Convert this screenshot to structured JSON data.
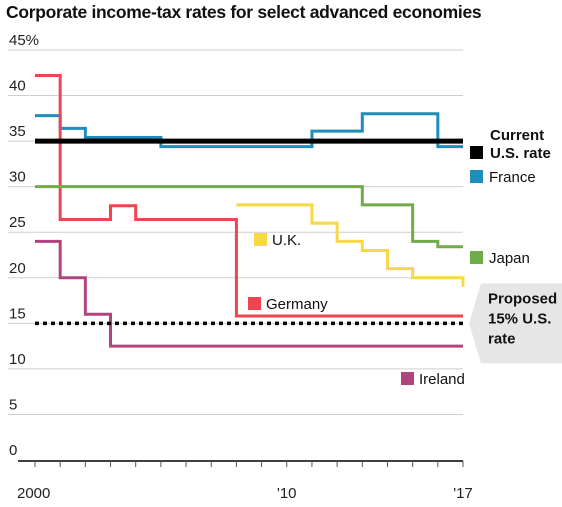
{
  "chart_data": {
    "type": "line",
    "title": "Corporate income-tax rates for select advanced economies",
    "y_ticks": [
      0,
      5,
      10,
      15,
      20,
      25,
      30,
      35,
      40,
      45
    ],
    "y_tick_labels": [
      "0",
      "5",
      "10",
      "15",
      "20",
      "25",
      "30",
      "35",
      "40",
      "45%"
    ],
    "x_ticks": [
      2000,
      2010,
      2017
    ],
    "x_tick_labels": [
      "2000",
      "'10",
      "'17"
    ],
    "ylim": [
      0,
      45
    ],
    "xlim": [
      2000,
      2017
    ],
    "grid": "horizontal",
    "series": [
      {
        "name": "France",
        "color": "#1f8dbb",
        "x": [
          2000,
          2001,
          2002,
          2004,
          2005,
          2009,
          2010,
          2011,
          2012,
          2013,
          2014,
          2015,
          2016,
          2017
        ],
        "y": [
          37.8,
          36.4,
          35.4,
          35.4,
          34.4,
          34.4,
          34.4,
          36.1,
          36.1,
          38.0,
          38.0,
          38.0,
          34.4,
          34.4
        ]
      },
      {
        "name": "Germany",
        "color": "#ee4550",
        "x": [
          2000,
          2001,
          2002,
          2003,
          2004,
          2005,
          2006,
          2007,
          2008,
          2009,
          2010,
          2011,
          2012,
          2013,
          2014,
          2015,
          2016,
          2017
        ],
        "y": [
          42.2,
          26.4,
          26.4,
          27.9,
          26.4,
          26.4,
          26.4,
          26.4,
          15.8,
          15.8,
          15.8,
          15.8,
          15.8,
          15.8,
          15.8,
          15.8,
          15.8,
          15.8
        ]
      },
      {
        "name": "U.K.",
        "color": "#f7d845",
        "x": [
          2008,
          2009,
          2010,
          2011,
          2012,
          2013,
          2014,
          2015,
          2016,
          2017
        ],
        "y": [
          28,
          28,
          28,
          26,
          24,
          23,
          21,
          20,
          20,
          19
        ]
      },
      {
        "name": "Japan",
        "color": "#71ab4a",
        "x": [
          2000,
          2001,
          2002,
          2003,
          2004,
          2005,
          2006,
          2007,
          2008,
          2009,
          2010,
          2011,
          2012,
          2013,
          2014,
          2015,
          2016,
          2017
        ],
        "y": [
          30,
          30,
          30,
          30,
          30,
          30,
          30,
          30,
          30,
          30,
          30,
          30,
          30,
          28,
          28,
          24,
          23.4,
          23.4
        ]
      },
      {
        "name": "Ireland",
        "color": "#b0457e",
        "x": [
          2000,
          2001,
          2002,
          2003,
          2017
        ],
        "y": [
          24,
          20,
          16,
          12.5,
          12.5
        ]
      }
    ],
    "reference_lines": [
      {
        "name": "Current U.S. rate",
        "label_lines": [
          "Current",
          "U.S. rate"
        ],
        "value": 35,
        "color": "#000000",
        "style": "solid"
      },
      {
        "name": "Proposed 15% U.S. rate",
        "label_lines": [
          "Proposed",
          "15% U.S.",
          "rate"
        ],
        "value": 15,
        "color": "#000000",
        "style": "dotted"
      }
    ]
  }
}
